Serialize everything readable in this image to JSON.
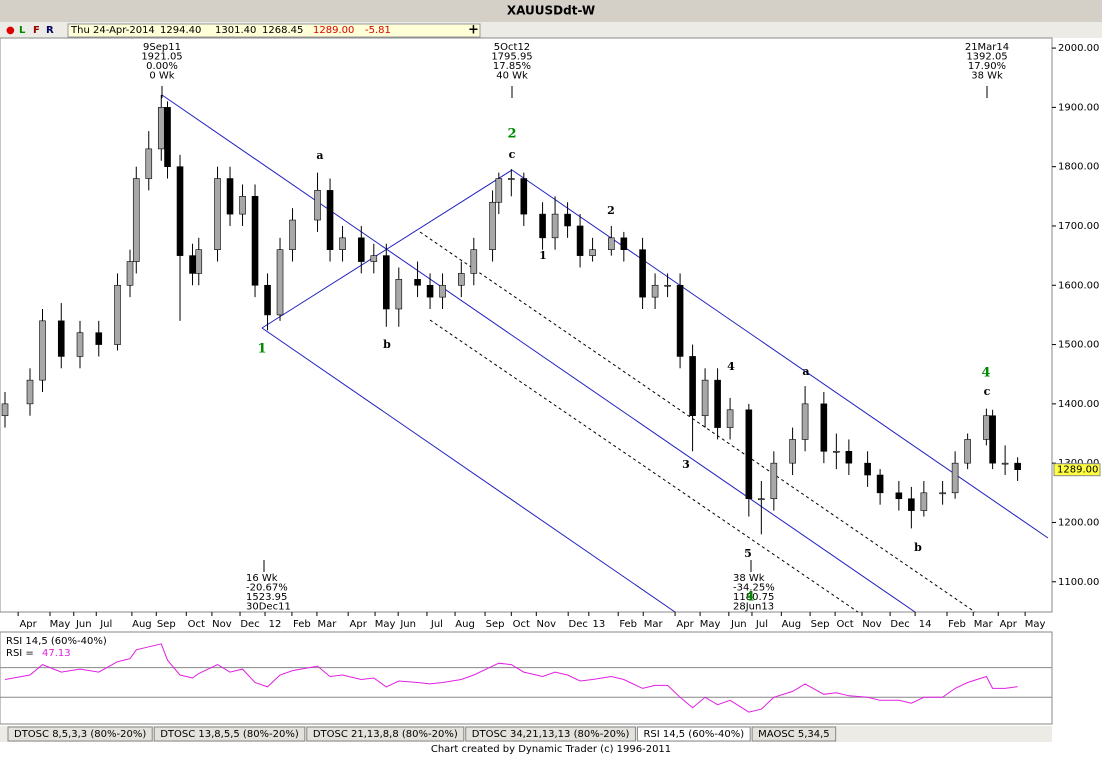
{
  "window": {
    "title": "XAUUSDdt-W",
    "toolbar": {
      "flags": [
        "●",
        "L",
        "F",
        "R"
      ],
      "date": "Thu 24-Apr-2014",
      "open": "1294.40",
      "high": "1301.40",
      "low": "1268.45",
      "close": "1289.00",
      "change": "-5.81",
      "plus": "+"
    }
  },
  "chart_data": {
    "type": "candlestick",
    "x": [
      0,
      4,
      6,
      9,
      12,
      15,
      18,
      20,
      21,
      23,
      25,
      26,
      28,
      30,
      31,
      34,
      36,
      38,
      40,
      42,
      44,
      46,
      50,
      52,
      54,
      57,
      59,
      61,
      63,
      66,
      68,
      70,
      73,
      75,
      78,
      79,
      81,
      83,
      86,
      88,
      90,
      92,
      94,
      97,
      99,
      102,
      104,
      106,
      108,
      110,
      112,
      114,
      116,
      119,
      121,
      123,
      126,
      128,
      131,
      133,
      135,
      138,
      140,
      143,
      145,
      147,
      150,
      152,
      154,
      157,
      158,
      160,
      162
    ],
    "open": [
      1380,
      1400,
      1440,
      1540,
      1480,
      1520,
      1500,
      1600,
      1640,
      1780,
      1830,
      1900,
      1800,
      1650,
      1620,
      1660,
      1780,
      1720,
      1750,
      1600,
      1550,
      1660,
      1710,
      1760,
      1660,
      1680,
      1640,
      1650,
      1560,
      1610,
      1600,
      1580,
      1600,
      1620,
      1660,
      1740,
      1780,
      1780,
      1720,
      1680,
      1720,
      1700,
      1650,
      1660,
      1680,
      1660,
      1580,
      1600,
      1600,
      1480,
      1380,
      1440,
      1360,
      1390,
      1240,
      1240,
      1300,
      1340,
      1400,
      1320,
      1320,
      1300,
      1280,
      1250,
      1240,
      1220,
      1250,
      1250,
      1300,
      1340,
      1380,
      1300,
      1300
    ],
    "high": [
      1420,
      1460,
      1560,
      1570,
      1540,
      1540,
      1620,
      1660,
      1800,
      1860,
      1921,
      1910,
      1820,
      1670,
      1680,
      1800,
      1800,
      1770,
      1770,
      1620,
      1680,
      1730,
      1790,
      1780,
      1700,
      1700,
      1670,
      1670,
      1630,
      1640,
      1620,
      1620,
      1640,
      1680,
      1760,
      1790,
      1796,
      1790,
      1740,
      1750,
      1740,
      1720,
      1680,
      1700,
      1690,
      1680,
      1620,
      1620,
      1620,
      1500,
      1460,
      1460,
      1410,
      1400,
      1270,
      1320,
      1360,
      1430,
      1420,
      1350,
      1340,
      1320,
      1290,
      1270,
      1260,
      1270,
      1270,
      1320,
      1350,
      1392,
      1390,
      1330,
      1310
    ],
    "low": [
      1360,
      1380,
      1420,
      1460,
      1460,
      1480,
      1490,
      1580,
      1620,
      1760,
      1810,
      1780,
      1540,
      1600,
      1600,
      1640,
      1700,
      1700,
      1580,
      1524,
      1540,
      1640,
      1690,
      1640,
      1640,
      1620,
      1620,
      1530,
      1530,
      1580,
      1560,
      1560,
      1580,
      1600,
      1640,
      1720,
      1750,
      1700,
      1660,
      1660,
      1680,
      1630,
      1640,
      1650,
      1640,
      1560,
      1560,
      1580,
      1460,
      1320,
      1360,
      1340,
      1340,
      1210,
      1180,
      1220,
      1280,
      1320,
      1300,
      1290,
      1280,
      1260,
      1230,
      1220,
      1190,
      1210,
      1230,
      1240,
      1290,
      1330,
      1290,
      1280,
      1270
    ],
    "close": [
      1400,
      1440,
      1540,
      1480,
      1520,
      1500,
      1600,
      1640,
      1780,
      1830,
      1900,
      1800,
      1650,
      1620,
      1660,
      1780,
      1720,
      1750,
      1600,
      1550,
      1660,
      1710,
      1760,
      1660,
      1680,
      1640,
      1650,
      1560,
      1610,
      1600,
      1580,
      1600,
      1620,
      1660,
      1740,
      1780,
      1780,
      1720,
      1680,
      1720,
      1700,
      1650,
      1660,
      1680,
      1660,
      1580,
      1600,
      1600,
      1480,
      1380,
      1440,
      1360,
      1390,
      1240,
      1240,
      1300,
      1340,
      1400,
      1320,
      1320,
      1300,
      1280,
      1250,
      1240,
      1220,
      1250,
      1250,
      1300,
      1340,
      1380,
      1300,
      1300,
      1289
    ],
    "up_color": "#a8a8a8",
    "down_color": "#000000",
    "xlim": [
      -0.8,
      167.5
    ],
    "ylim": [
      1049,
      2017
    ],
    "yticks": [
      {
        "value": 2000,
        "label": "2000.00"
      },
      {
        "value": 1900,
        "label": "1900.00"
      },
      {
        "value": 1800,
        "label": "1800.00"
      },
      {
        "value": 1700,
        "label": "1700.00"
      },
      {
        "value": 1600,
        "label": "1600.00"
      },
      {
        "value": 1500,
        "label": "1500.00"
      },
      {
        "value": 1400,
        "label": "1400.00"
      },
      {
        "value": 1300,
        "label": "1300.00"
      },
      {
        "value": 1200,
        "label": "1200.00"
      },
      {
        "value": 1100,
        "label": "1100.00"
      }
    ],
    "xticks": [
      {
        "value": 3.7,
        "label": "Apr"
      },
      {
        "value": 8.8,
        "label": "May"
      },
      {
        "value": 12.6,
        "label": "Jun"
      },
      {
        "value": 16.2,
        "label": "Jul"
      },
      {
        "value": 21.9,
        "label": "Aug"
      },
      {
        "value": 25.8,
        "label": "Sep"
      },
      {
        "value": 30.6,
        "label": "Oct"
      },
      {
        "value": 34.7,
        "label": "Nov"
      },
      {
        "value": 39.2,
        "label": "Dec"
      },
      {
        "value": 43.2,
        "label": "12"
      },
      {
        "value": 47.5,
        "label": "Feb"
      },
      {
        "value": 51.5,
        "label": "Mar"
      },
      {
        "value": 56.5,
        "label": "Apr"
      },
      {
        "value": 60.8,
        "label": "May"
      },
      {
        "value": 64.5,
        "label": "Jun"
      },
      {
        "value": 69.1,
        "label": "Jul"
      },
      {
        "value": 73.6,
        "label": "Aug"
      },
      {
        "value": 78.4,
        "label": "Sep"
      },
      {
        "value": 82.6,
        "label": "Oct"
      },
      {
        "value": 86.6,
        "label": "Nov"
      },
      {
        "value": 91.7,
        "label": "Dec"
      },
      {
        "value": 95.0,
        "label": "13"
      },
      {
        "value": 99.7,
        "label": "Feb"
      },
      {
        "value": 103.7,
        "label": "Mar"
      },
      {
        "value": 108.8,
        "label": "Apr"
      },
      {
        "value": 112.8,
        "label": "May"
      },
      {
        "value": 117.4,
        "label": "Jun"
      },
      {
        "value": 121.1,
        "label": "Jul"
      },
      {
        "value": 125.8,
        "label": "Aug"
      },
      {
        "value": 130.4,
        "label": "Sep"
      },
      {
        "value": 134.4,
        "label": "Oct"
      },
      {
        "value": 138.7,
        "label": "Nov"
      },
      {
        "value": 143.2,
        "label": "Dec"
      },
      {
        "value": 147.2,
        "label": "14"
      },
      {
        "value": 152.3,
        "label": "Feb"
      },
      {
        "value": 156.5,
        "label": "Mar"
      },
      {
        "value": 160.5,
        "label": "Apr"
      },
      {
        "value": 164.8,
        "label": "May"
      }
    ],
    "last_price": {
      "value": 1289,
      "label": "1289.00"
    },
    "annotations": [
      {
        "lines": [
          "9Sep11",
          "1921.05",
          "0.00%",
          "0 Wk"
        ]
      },
      {
        "lines": [
          "5Oct12",
          "1795.95",
          "17.85%",
          "40 Wk"
        ]
      },
      {
        "lines": [
          "21Mar14",
          "1392.05",
          "17.90%",
          "38 Wk"
        ]
      },
      {
        "lines": [
          "16 Wk",
          "-20.67%",
          "1523.95",
          "30Dec11"
        ]
      },
      {
        "lines": [
          "38 Wk",
          "-34.25%",
          "1180.75",
          "28Jun13"
        ]
      }
    ],
    "wave_labels": [
      "1",
      "2",
      "a",
      "b",
      "c",
      "1",
      "2",
      "3",
      "4",
      "5",
      "a",
      "b",
      "4",
      "c",
      "4"
    ],
    "rsi": {
      "name": "RSI 14,5 (60%-40%)",
      "value_label": "RSI =",
      "color": "#e020e0",
      "bands": [
        60,
        40
      ],
      "ylim": [
        22,
        84
      ],
      "values": [
        52,
        55,
        62,
        57,
        59,
        57,
        64,
        66,
        72,
        74,
        76,
        65,
        55,
        53,
        56,
        62,
        57,
        59,
        50,
        47,
        55,
        58,
        61,
        54,
        55,
        52,
        53,
        47,
        51,
        50,
        49,
        50,
        52,
        55,
        61,
        63,
        62,
        57,
        54,
        57,
        55,
        51,
        52,
        54,
        52,
        46,
        48,
        48,
        40,
        33,
        40,
        35,
        38,
        30,
        32,
        40,
        44,
        49,
        42,
        43,
        41,
        40,
        38,
        38,
        36,
        40,
        40,
        46,
        50,
        54,
        46,
        46,
        47.13
      ]
    }
  },
  "tabs": [
    "DTOSC 8,5,3,3 (80%-20%)",
    "DTOSC 13,8,5,5 (80%-20%)",
    "DTOSC 21,13,8,8 (80%-20%)",
    "DTOSC 34,21,13,13 (80%-20%)",
    "RSI 14,5 (60%-40%)",
    "MAOSC 5,34,5"
  ],
  "footer": "Chart created by Dynamic Trader  (c)  1996-2011"
}
